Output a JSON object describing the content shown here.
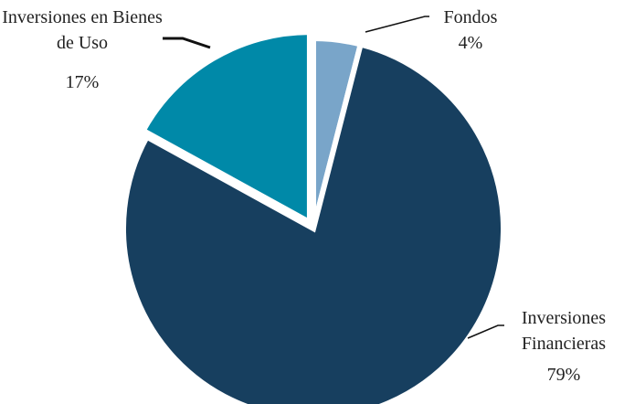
{
  "chart_data": {
    "type": "pie",
    "categories": [
      "Fondos",
      "Inversiones Financieras",
      "Inversiones en Bienes de Uso"
    ],
    "values": [
      4,
      79,
      17
    ],
    "value_labels": [
      "4%",
      "79%",
      "17%"
    ],
    "colors": [
      "#79a5c9",
      "#173f5f",
      "#0089a8"
    ]
  }
}
